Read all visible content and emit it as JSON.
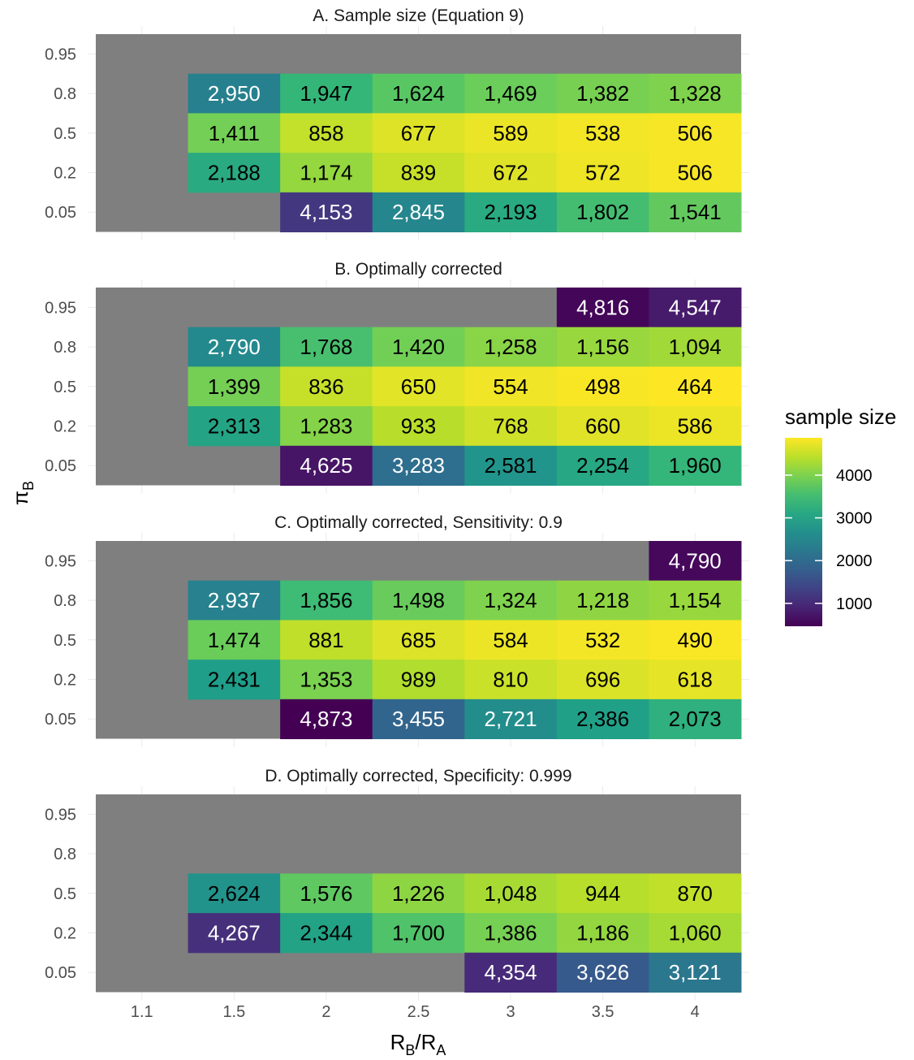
{
  "chart_data": {
    "type": "heatmap",
    "x_categories": [
      "1.1",
      "1.5",
      "2",
      "2.5",
      "3",
      "3.5",
      "4"
    ],
    "y_categories": [
      "0.95",
      "0.8",
      "0.5",
      "0.2",
      "0.05"
    ],
    "xlabel_main": "R",
    "xlabel_sub1": "B",
    "xlabel_slash": "/",
    "xlabel_main2": "R",
    "xlabel_sub2": "A",
    "ylabel_main": "π",
    "ylabel_sub": "B",
    "missing_color": "#7f7f7f",
    "panels": [
      {
        "title": "A. Sample size (Equation 9)",
        "y_categories": [
          "0.95",
          "0.8",
          "0.5",
          "0.2",
          "0.05"
        ],
        "values": [
          [
            null,
            null,
            null,
            null,
            null,
            null,
            null
          ],
          [
            null,
            2950,
            1947,
            1624,
            1469,
            1382,
            1328
          ],
          [
            null,
            1411,
            858,
            677,
            589,
            538,
            506
          ],
          [
            null,
            2188,
            1174,
            839,
            672,
            572,
            506
          ],
          [
            null,
            null,
            4153,
            2845,
            2193,
            1802,
            1541
          ]
        ],
        "labels": [
          [
            "",
            "",
            "",
            "",
            "",
            "",
            ""
          ],
          [
            "",
            "2,950",
            "1,947",
            "1,624",
            "1,469",
            "1,382",
            "1,328"
          ],
          [
            "",
            "1,411",
            "858",
            "677",
            "589",
            "538",
            "506"
          ],
          [
            "",
            "2,188",
            "1,174",
            "839",
            "672",
            "572",
            "506"
          ],
          [
            "",
            "",
            "4,153",
            "2,845",
            "2,193",
            "1,802",
            "1,541"
          ]
        ]
      },
      {
        "title": "B. Optimally corrected",
        "y_categories": [
          "0.95",
          "0.8",
          "0.5",
          "0.2",
          "0.05"
        ],
        "values": [
          [
            null,
            null,
            null,
            null,
            null,
            4816,
            4547
          ],
          [
            null,
            2790,
            1768,
            1420,
            1258,
            1156,
            1094
          ],
          [
            null,
            1399,
            836,
            650,
            554,
            498,
            464
          ],
          [
            null,
            2313,
            1283,
            933,
            768,
            660,
            586
          ],
          [
            null,
            null,
            4625,
            3283,
            2581,
            2254,
            1960
          ]
        ],
        "labels": [
          [
            "",
            "",
            "",
            "",
            "",
            "4,816",
            "4,547"
          ],
          [
            "",
            "2,790",
            "1,768",
            "1,420",
            "1,258",
            "1,156",
            "1,094"
          ],
          [
            "",
            "1,399",
            "836",
            "650",
            "554",
            "498",
            "464"
          ],
          [
            "",
            "2,313",
            "1,283",
            "933",
            "768",
            "660",
            "586"
          ],
          [
            "",
            "",
            "4,625",
            "3,283",
            "2,581",
            "2,254",
            "1,960"
          ]
        ]
      },
      {
        "title": "C. Optimally corrected, Sensitivity: 0.9",
        "y_categories": [
          "0.95",
          "0.8",
          "0.5",
          "0.2",
          "0.05"
        ],
        "values": [
          [
            null,
            null,
            null,
            null,
            null,
            null,
            4790
          ],
          [
            null,
            2937,
            1856,
            1498,
            1324,
            1218,
            1154
          ],
          [
            null,
            1474,
            881,
            685,
            584,
            532,
            490
          ],
          [
            null,
            2431,
            1353,
            989,
            810,
            696,
            618
          ],
          [
            null,
            null,
            4873,
            3455,
            2721,
            2386,
            2073
          ]
        ],
        "labels": [
          [
            "",
            "",
            "",
            "",
            "",
            "",
            "4,790"
          ],
          [
            "",
            "2,937",
            "1,856",
            "1,498",
            "1,324",
            "1,218",
            "1,154"
          ],
          [
            "",
            "1,474",
            "881",
            "685",
            "584",
            "532",
            "490"
          ],
          [
            "",
            "2,431",
            "1,353",
            "989",
            "810",
            "696",
            "618"
          ],
          [
            "",
            "",
            "4,873",
            "3,455",
            "2,721",
            "2,386",
            "2,073"
          ]
        ]
      },
      {
        "title": "D. Optimally corrected, Specificity: 0.999",
        "y_categories": [
          "0.95",
          "0.8",
          "0.5",
          "0.2",
          "0.05"
        ],
        "values": [
          [
            null,
            null,
            null,
            null,
            null,
            null,
            null
          ],
          [
            null,
            null,
            null,
            null,
            null,
            null,
            null
          ],
          [
            null,
            2624,
            1576,
            1226,
            1048,
            944,
            870
          ],
          [
            null,
            4267,
            2344,
            1700,
            1386,
            1186,
            1060
          ],
          [
            null,
            null,
            null,
            null,
            4354,
            3626,
            3121
          ]
        ],
        "labels": [
          [
            "",
            "",
            "",
            "",
            "",
            "",
            ""
          ],
          [
            "",
            "",
            "",
            "",
            "",
            "",
            ""
          ],
          [
            "",
            "2,624",
            "1,576",
            "1,226",
            "1,048",
            "944",
            "870"
          ],
          [
            "",
            "4,267",
            "2,344",
            "1,700",
            "1,386",
            "1,186",
            "1,060"
          ],
          [
            "",
            "",
            "",
            "",
            "4,354",
            "3,626",
            "3,121"
          ]
        ]
      }
    ],
    "legend": {
      "title": "sample size",
      "ticks": [
        4000,
        3000,
        2000,
        1000
      ],
      "tick_labels": [
        "4000",
        "3000",
        "2000",
        "1000"
      ],
      "range": [
        464,
        4873
      ],
      "colormap": "viridis-reversed"
    }
  }
}
